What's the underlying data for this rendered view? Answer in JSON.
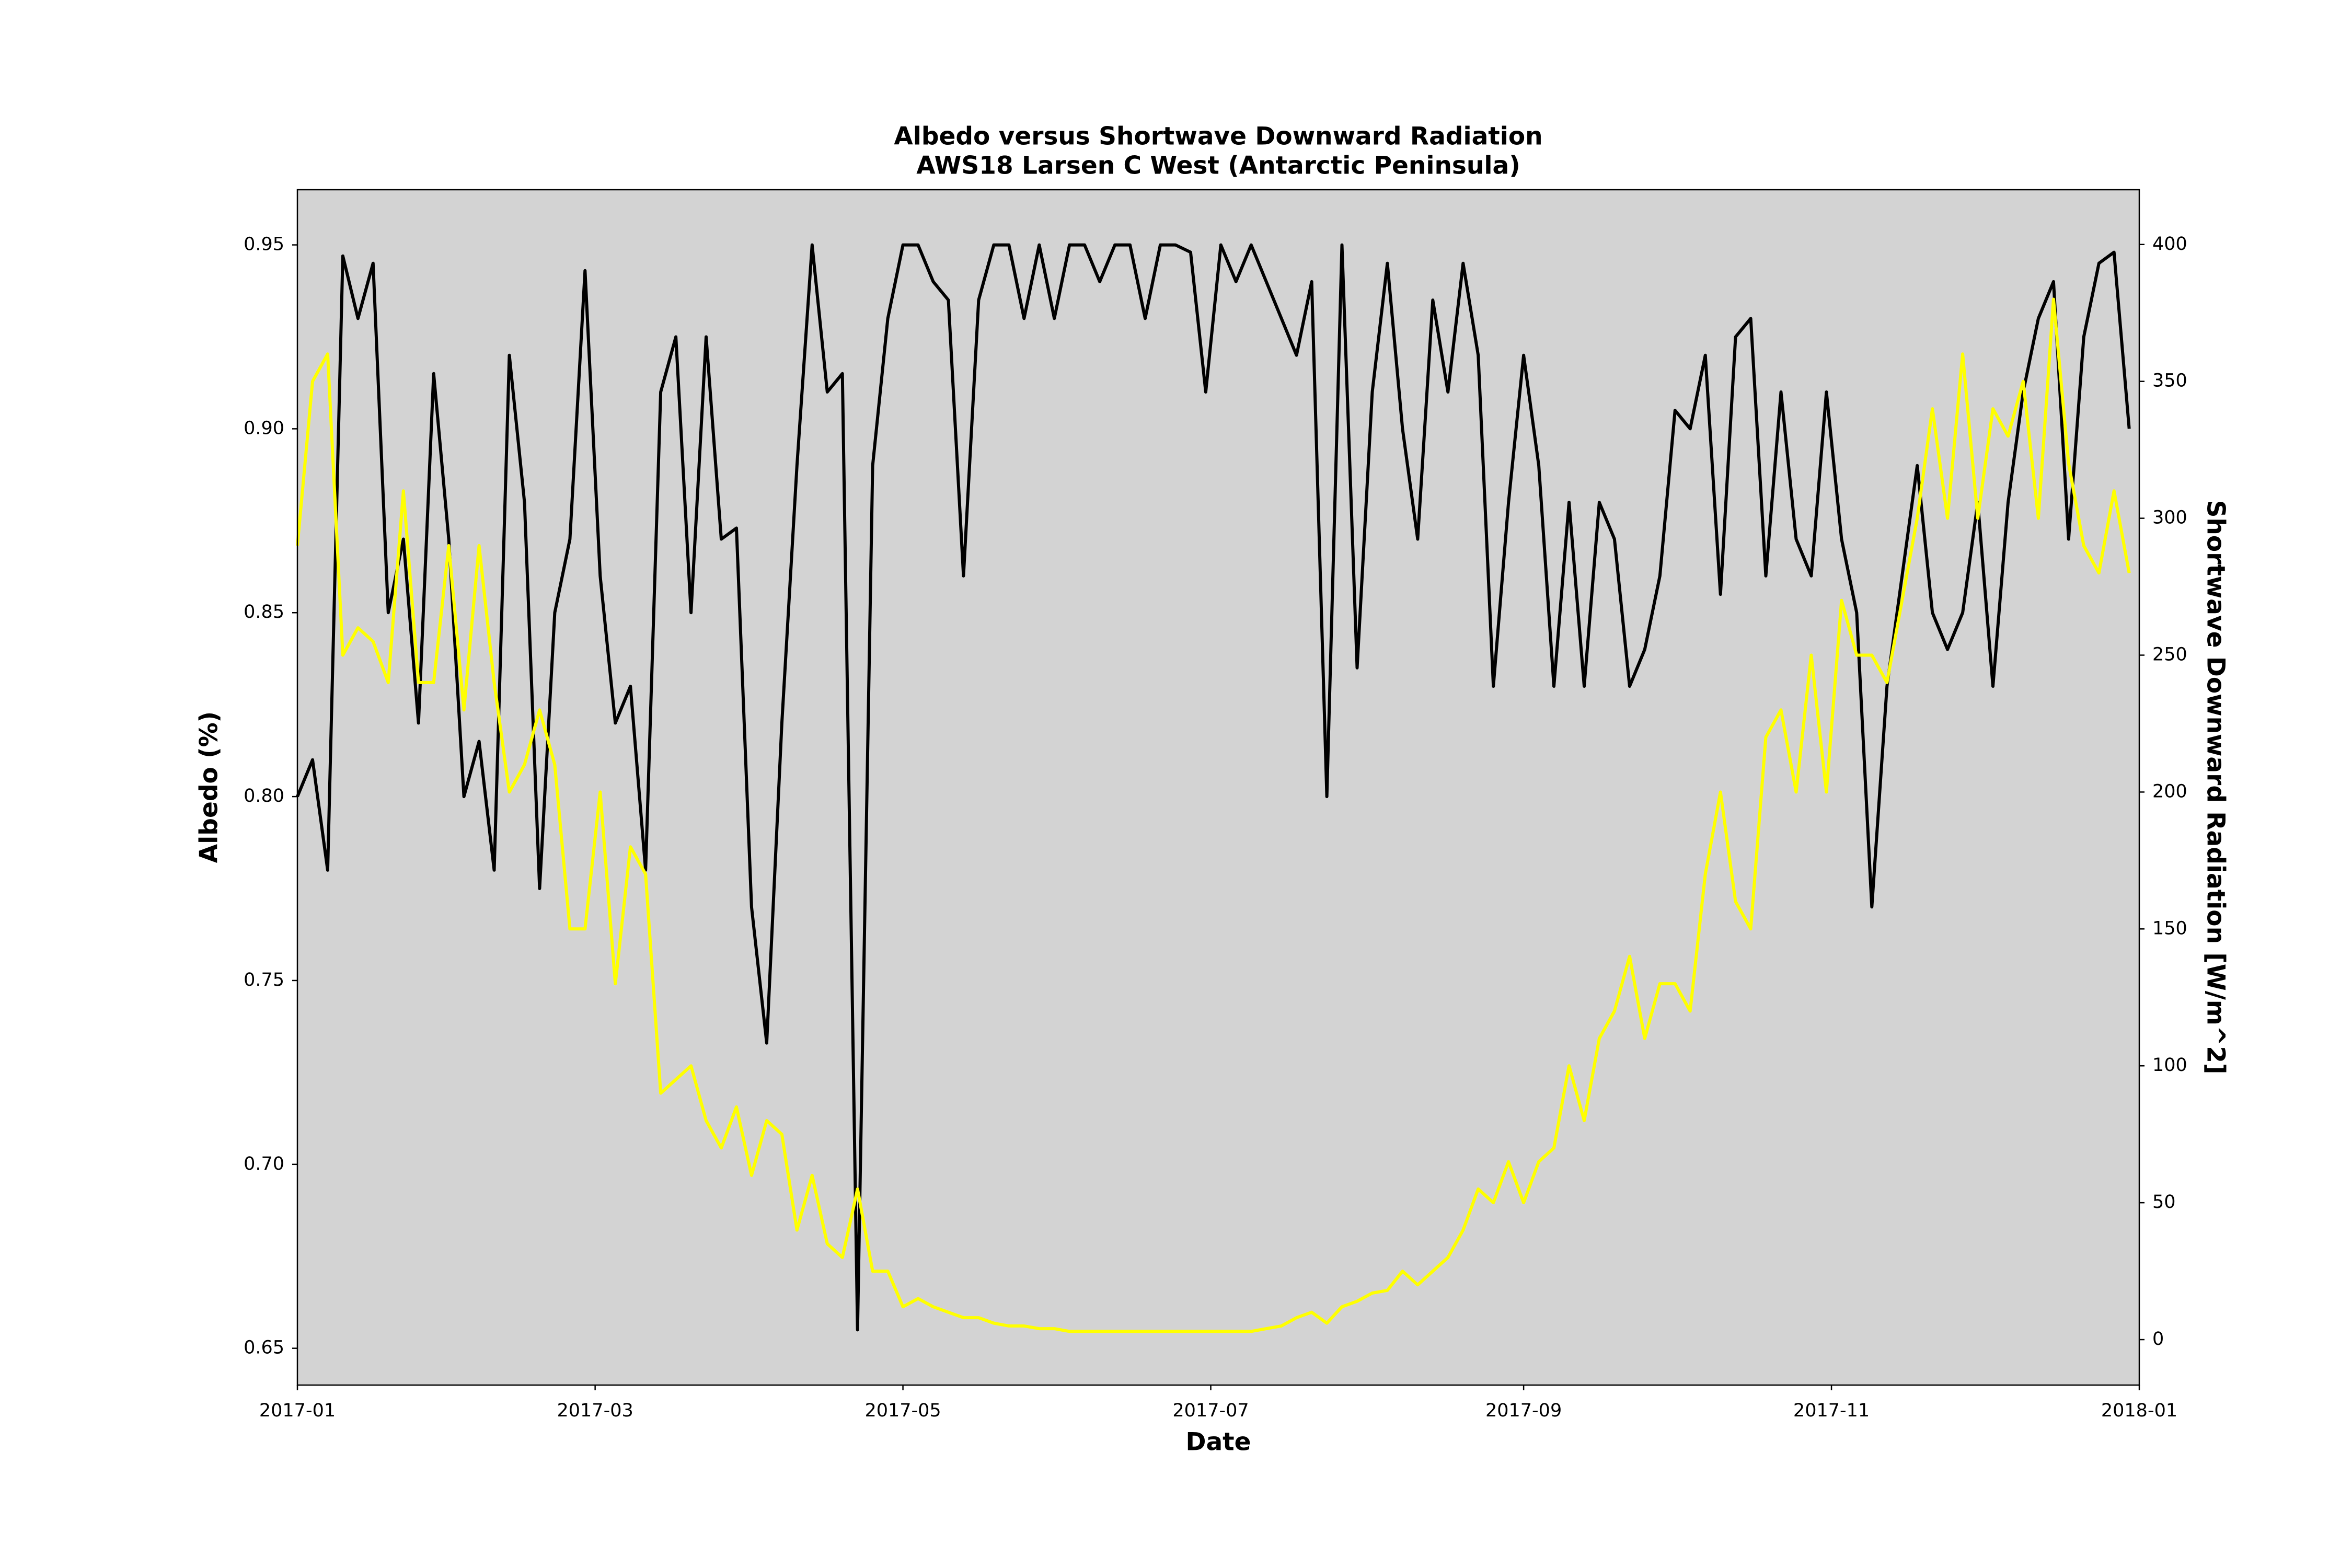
{
  "chart_data": {
    "type": "line",
    "title": "Albedo versus Shortwave Downward Radiation",
    "subtitle": "AWS18 Larsen C West (Antarctic Peninsula)",
    "x_label": "Date",
    "y_label": "Albedo (%)",
    "y2_label": "Shortwave Downward Radiation [W/m^2]",
    "background": "#d3d3d3",
    "grid": false,
    "x": [
      0,
      3,
      6,
      9,
      12,
      15,
      18,
      21,
      24,
      27,
      30,
      33,
      36,
      39,
      42,
      45,
      48,
      51,
      54,
      57,
      60,
      63,
      66,
      69,
      72,
      75,
      78,
      81,
      84,
      87,
      90,
      93,
      96,
      99,
      102,
      105,
      108,
      111,
      114,
      117,
      120,
      123,
      126,
      129,
      132,
      135,
      138,
      141,
      144,
      147,
      150,
      153,
      156,
      159,
      162,
      165,
      168,
      171,
      174,
      177,
      180,
      183,
      186,
      189,
      192,
      195,
      198,
      201,
      204,
      207,
      210,
      213,
      216,
      219,
      222,
      225,
      228,
      231,
      234,
      237,
      240,
      243,
      246,
      249,
      252,
      255,
      258,
      261,
      264,
      267,
      270,
      273,
      276,
      279,
      282,
      285,
      288,
      291,
      294,
      297,
      300,
      303,
      306,
      309,
      312,
      315,
      318,
      321,
      324,
      327,
      330,
      333,
      336,
      339,
      342,
      345,
      348,
      351,
      354,
      357,
      360,
      363
    ],
    "xlim": [
      0,
      365
    ],
    "xticks": [
      {
        "value": 0,
        "label": "2017-01"
      },
      {
        "value": 59,
        "label": "2017-03"
      },
      {
        "value": 120,
        "label": "2017-05"
      },
      {
        "value": 181,
        "label": "2017-07"
      },
      {
        "value": 243,
        "label": "2017-09"
      },
      {
        "value": 304,
        "label": "2017-11"
      },
      {
        "value": 365,
        "label": "2018-01"
      }
    ],
    "ylim": [
      0.64,
      0.965
    ],
    "yticks": [
      0.65,
      {
        "value": 0.7,
        "label": "0.70"
      },
      0.75,
      {
        "value": 0.8,
        "label": "0.80"
      },
      0.85,
      {
        "value": 0.9,
        "label": "0.90"
      },
      0.95
    ],
    "y2lim": [
      -16.6,
      420
    ],
    "y2ticks": [
      0,
      50,
      100,
      150,
      200,
      250,
      300,
      350,
      400
    ],
    "series": [
      {
        "color": "#000000",
        "axis": "y",
        "values": [
          0.8,
          0.81,
          0.78,
          0.947,
          0.93,
          0.945,
          0.85,
          0.87,
          0.82,
          0.915,
          0.87,
          0.8,
          0.815,
          0.78,
          0.92,
          0.88,
          0.775,
          0.85,
          0.87,
          0.943,
          0.86,
          0.82,
          0.83,
          0.78,
          0.91,
          0.925,
          0.85,
          0.925,
          0.87,
          0.873,
          0.77,
          0.733,
          0.82,
          0.89,
          0.95,
          0.91,
          0.915,
          0.655,
          0.89,
          0.93,
          0.95,
          0.95,
          0.94,
          0.935,
          0.86,
          0.935,
          0.95,
          0.95,
          0.93,
          0.95,
          0.93,
          0.95,
          0.95,
          0.94,
          0.95,
          0.95,
          0.93,
          0.95,
          0.95,
          0.948,
          0.91,
          0.95,
          0.94,
          0.95,
          0.94,
          0.93,
          0.92,
          0.94,
          0.8,
          0.95,
          0.835,
          0.91,
          0.945,
          0.9,
          0.87,
          0.935,
          0.91,
          0.945,
          0.92,
          0.83,
          0.88,
          0.92,
          0.89,
          0.83,
          0.88,
          0.83,
          0.88,
          0.87,
          0.83,
          0.84,
          0.86,
          0.905,
          0.9,
          0.92,
          0.855,
          0.925,
          0.93,
          0.86,
          0.91,
          0.87,
          0.86,
          0.91,
          0.87,
          0.85,
          0.77,
          0.83,
          0.86,
          0.89,
          0.85,
          0.84,
          0.85,
          0.88,
          0.83,
          0.88,
          0.91,
          0.93,
          0.94,
          0.87,
          0.925,
          0.945,
          0.948,
          0.9
        ]
      },
      {
        "color": "#ffff00",
        "axis": "y2",
        "values": [
          290,
          350,
          360,
          250,
          260,
          255,
          240,
          310,
          240,
          240,
          290,
          230,
          290,
          240,
          200,
          210,
          230,
          210,
          150,
          150,
          200,
          130,
          180,
          170,
          90,
          95,
          100,
          80,
          70,
          85,
          60,
          80,
          75,
          40,
          60,
          35,
          30,
          55,
          25,
          25,
          12,
          15,
          12,
          10,
          8,
          8,
          6,
          5,
          5,
          4,
          4,
          3,
          3,
          3,
          3,
          3,
          3,
          3,
          3,
          3,
          3,
          3,
          3,
          3,
          4,
          5,
          8,
          10,
          6,
          12,
          14,
          17,
          18,
          25,
          20,
          25,
          30,
          40,
          55,
          50,
          65,
          50,
          65,
          70,
          100,
          80,
          110,
          120,
          140,
          110,
          130,
          130,
          120,
          170,
          200,
          160,
          150,
          220,
          230,
          200,
          250,
          200,
          270,
          250,
          250,
          240,
          270,
          300,
          340,
          300,
          360,
          300,
          340,
          330,
          350,
          300,
          380,
          320,
          290,
          280,
          310,
          280
        ]
      }
    ]
  }
}
